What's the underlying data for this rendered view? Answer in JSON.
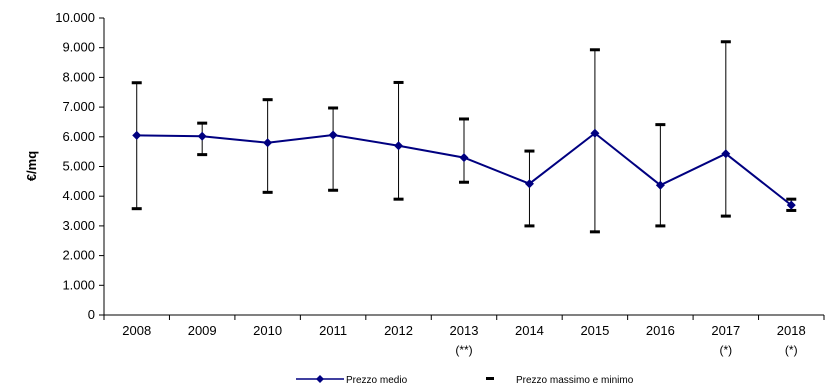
{
  "chart_data": {
    "type": "line",
    "ylabel": "€/mq",
    "ylim": [
      0,
      10000
    ],
    "y_ticks": [
      "0",
      "1.000",
      "2.000",
      "3.000",
      "4.000",
      "5.000",
      "6.000",
      "7.000",
      "8.000",
      "9.000",
      "10.000"
    ],
    "categories": [
      "2008",
      "2009",
      "2010",
      "2011",
      "2012",
      "2013",
      "2014",
      "2015",
      "2016",
      "2017",
      "2018"
    ],
    "category_notes": [
      "",
      "",
      "",
      "",
      "",
      "(**)",
      "",
      "",
      "",
      "(*)",
      "(*)"
    ],
    "series": [
      {
        "name": "Prezzo medio",
        "values": [
          6050,
          6020,
          5800,
          6060,
          5700,
          5300,
          4420,
          6120,
          4370,
          5430,
          3700
        ],
        "color": "#000080"
      },
      {
        "name": "Prezzo massimo e minimo",
        "max": [
          7820,
          6460,
          7250,
          6970,
          7830,
          6600,
          5520,
          8930,
          6410,
          9200,
          3900
        ],
        "min": [
          3580,
          5400,
          4130,
          4200,
          3900,
          4470,
          3000,
          2800,
          3000,
          3330,
          3520
        ],
        "color": "#000000"
      }
    ],
    "legend_position": "bottom",
    "grid": false
  }
}
